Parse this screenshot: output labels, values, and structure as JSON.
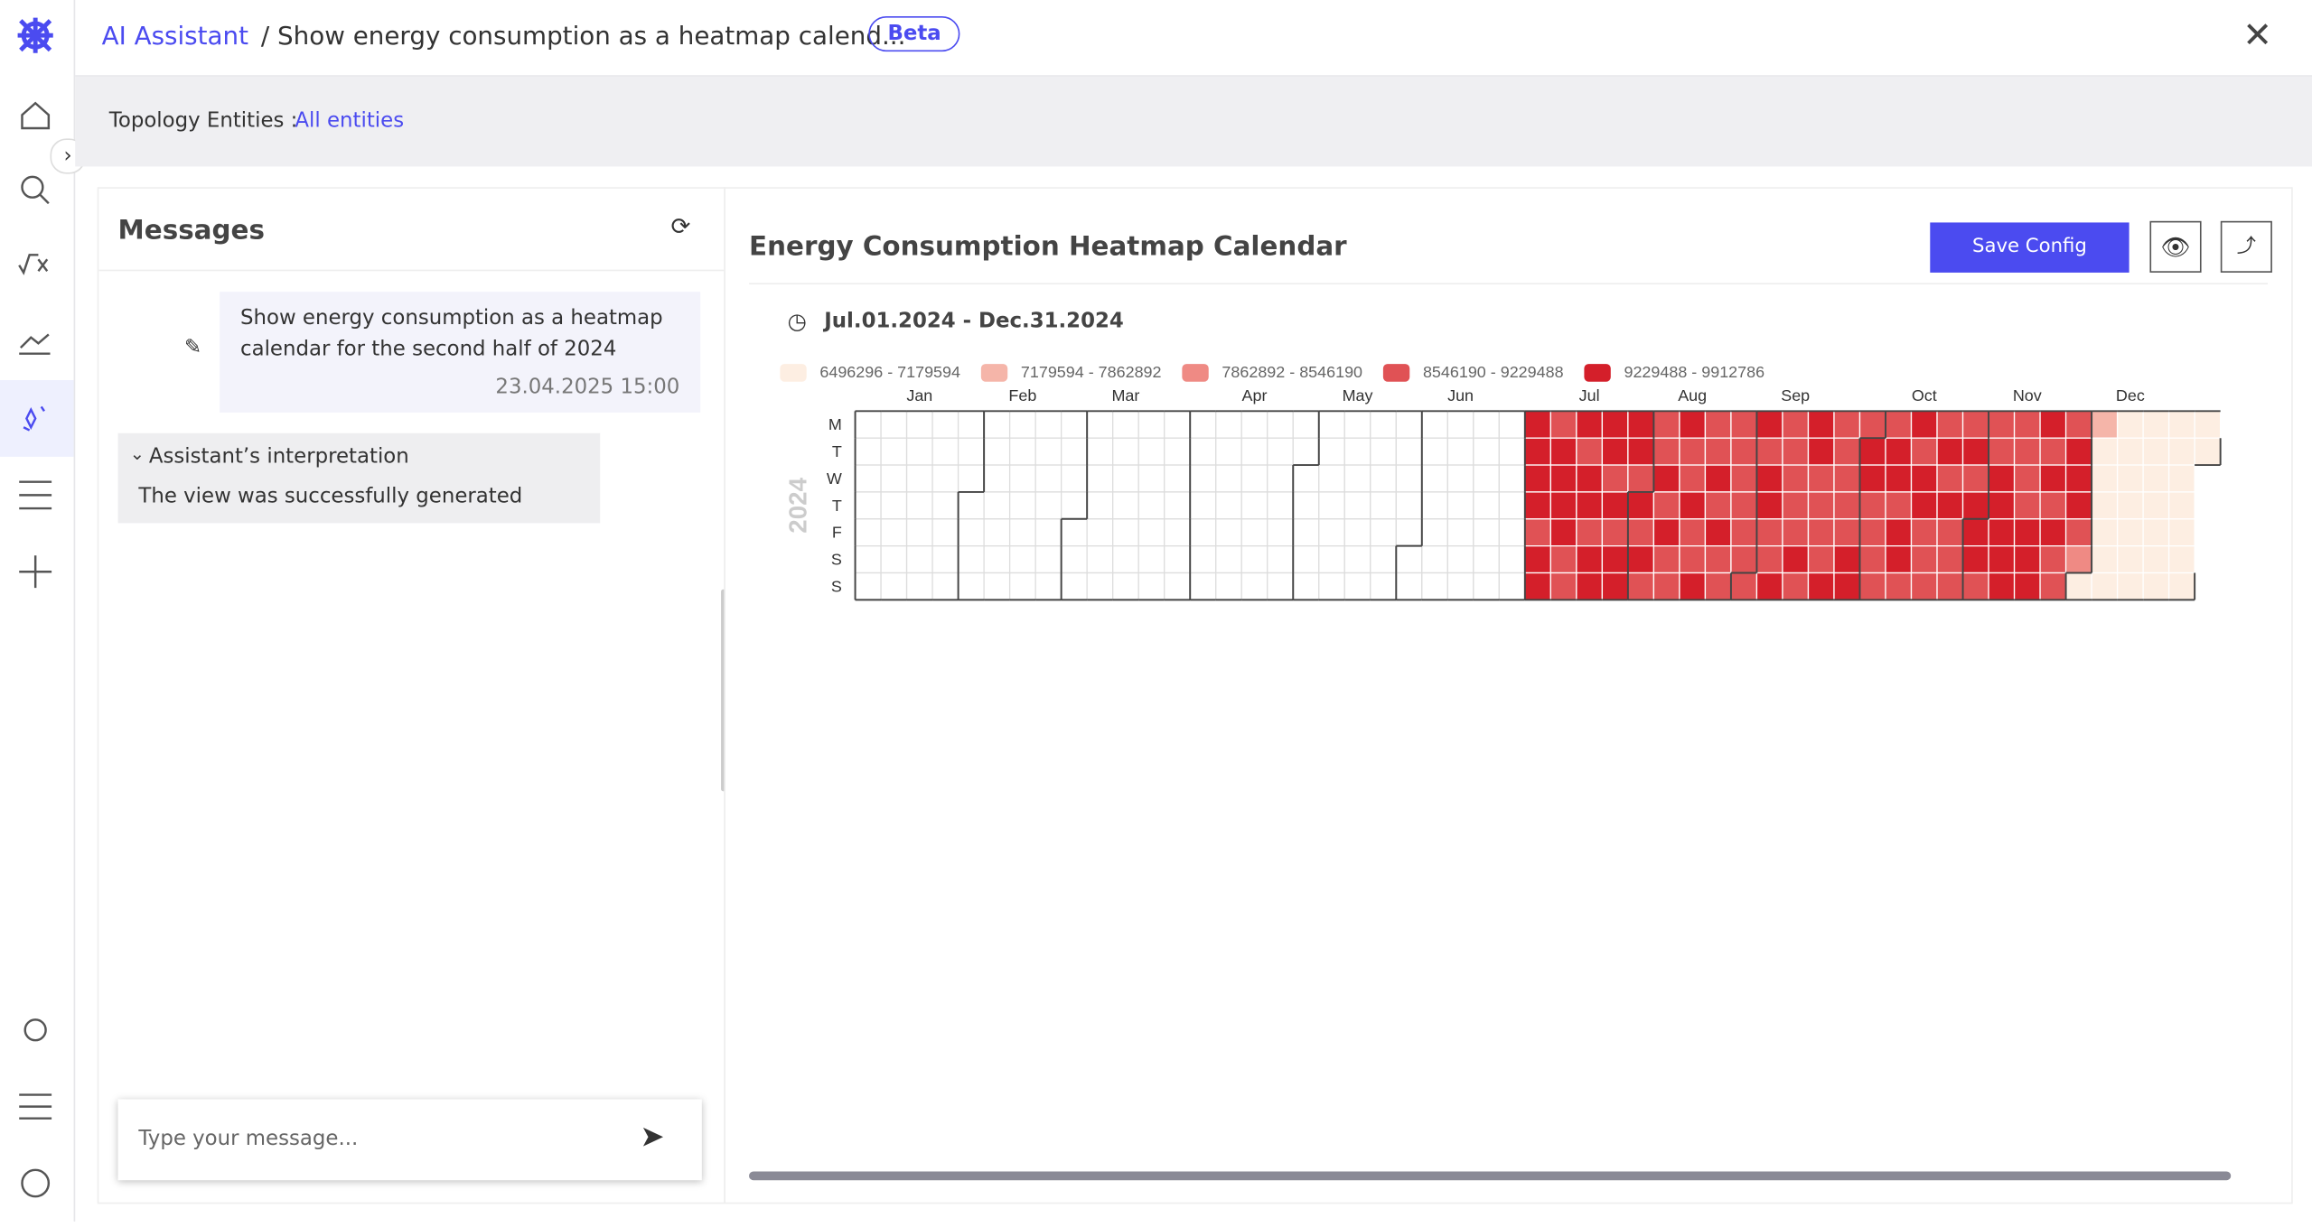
{
  "header": {
    "breadcrumb_root": "AI Assistant",
    "breadcrumb_page": "/ Show energy consumption as a heatmap calend...",
    "badge": "Beta"
  },
  "filter": {
    "label": "Topology Entities :",
    "value": "All entities"
  },
  "messages": {
    "title": "Messages",
    "user_message": "Show energy consumption as a heatmap calendar for the second half of 2024",
    "timestamp": "23.04.2025 15:00",
    "interpretation_title": "Assistant’s interpretation",
    "interpretation_text": "The view was successfully generated",
    "input_placeholder": "Type your message..."
  },
  "panel": {
    "title": "Energy Consumption Heatmap Calendar",
    "save_button": "Save Config",
    "date_range": "Jul.01.2024 - Dec.31.2024"
  },
  "chart_data": {
    "type": "calendar-heatmap",
    "year": "2024",
    "legend": [
      {
        "name": "6496296 - 7179594",
        "color": "#fdeee2"
      },
      {
        "name": "7179594 - 7862892",
        "color": "#f5b5a9"
      },
      {
        "name": "7862892 - 8546190",
        "color": "#ef8a84"
      },
      {
        "name": "8546190 - 9229488",
        "color": "#e05255"
      },
      {
        "name": "9229488 - 9912786",
        "color": "#d41f2a"
      }
    ],
    "months": [
      "Jan",
      "Feb",
      "Mar",
      "Apr",
      "May",
      "Jun",
      "Jul",
      "Aug",
      "Sep",
      "Oct",
      "Nov",
      "Dec"
    ],
    "weekdays": [
      "M",
      "T",
      "W",
      "T",
      "F",
      "S",
      "S"
    ],
    "values": [
      4,
      4,
      4,
      4,
      3,
      4,
      4,
      3,
      4,
      4,
      4,
      4,
      3,
      3,
      4,
      3,
      4,
      4,
      3,
      4,
      4,
      4,
      4,
      3,
      4,
      3,
      4,
      4,
      4,
      4,
      3,
      4,
      3,
      4,
      3,
      3,
      3,
      4,
      3,
      4,
      3,
      3,
      4,
      3,
      3,
      4,
      3,
      3,
      4,
      3,
      3,
      4,
      3,
      4,
      3,
      3,
      3,
      3,
      3,
      3,
      3,
      3,
      3,
      4,
      3,
      4,
      4,
      3,
      3,
      4,
      3,
      3,
      3,
      3,
      3,
      4,
      3,
      4,
      4,
      3,
      3,
      3,
      3,
      4,
      3,
      3,
      3,
      3,
      3,
      4,
      4,
      3,
      4,
      4,
      3,
      3,
      3,
      3,
      3,
      4,
      4,
      3,
      4,
      4,
      3,
      4,
      3,
      4,
      4,
      3,
      3,
      3,
      3,
      4,
      3,
      4,
      3,
      3,
      3,
      3,
      4,
      3,
      4,
      4,
      4,
      3,
      3,
      3,
      4,
      4,
      4,
      4,
      4,
      3,
      3,
      3,
      3,
      4,
      4,
      4,
      4,
      3,
      4,
      3,
      4,
      3,
      3,
      3,
      4,
      4,
      4,
      3,
      2,
      0,
      1,
      0,
      0,
      0,
      0,
      0,
      0,
      0,
      0,
      0,
      0,
      0,
      0,
      0,
      0,
      0,
      0,
      0,
      0,
      0,
      0,
      0,
      0,
      0,
      0,
      0,
      0,
      0,
      0,
      0
    ]
  }
}
